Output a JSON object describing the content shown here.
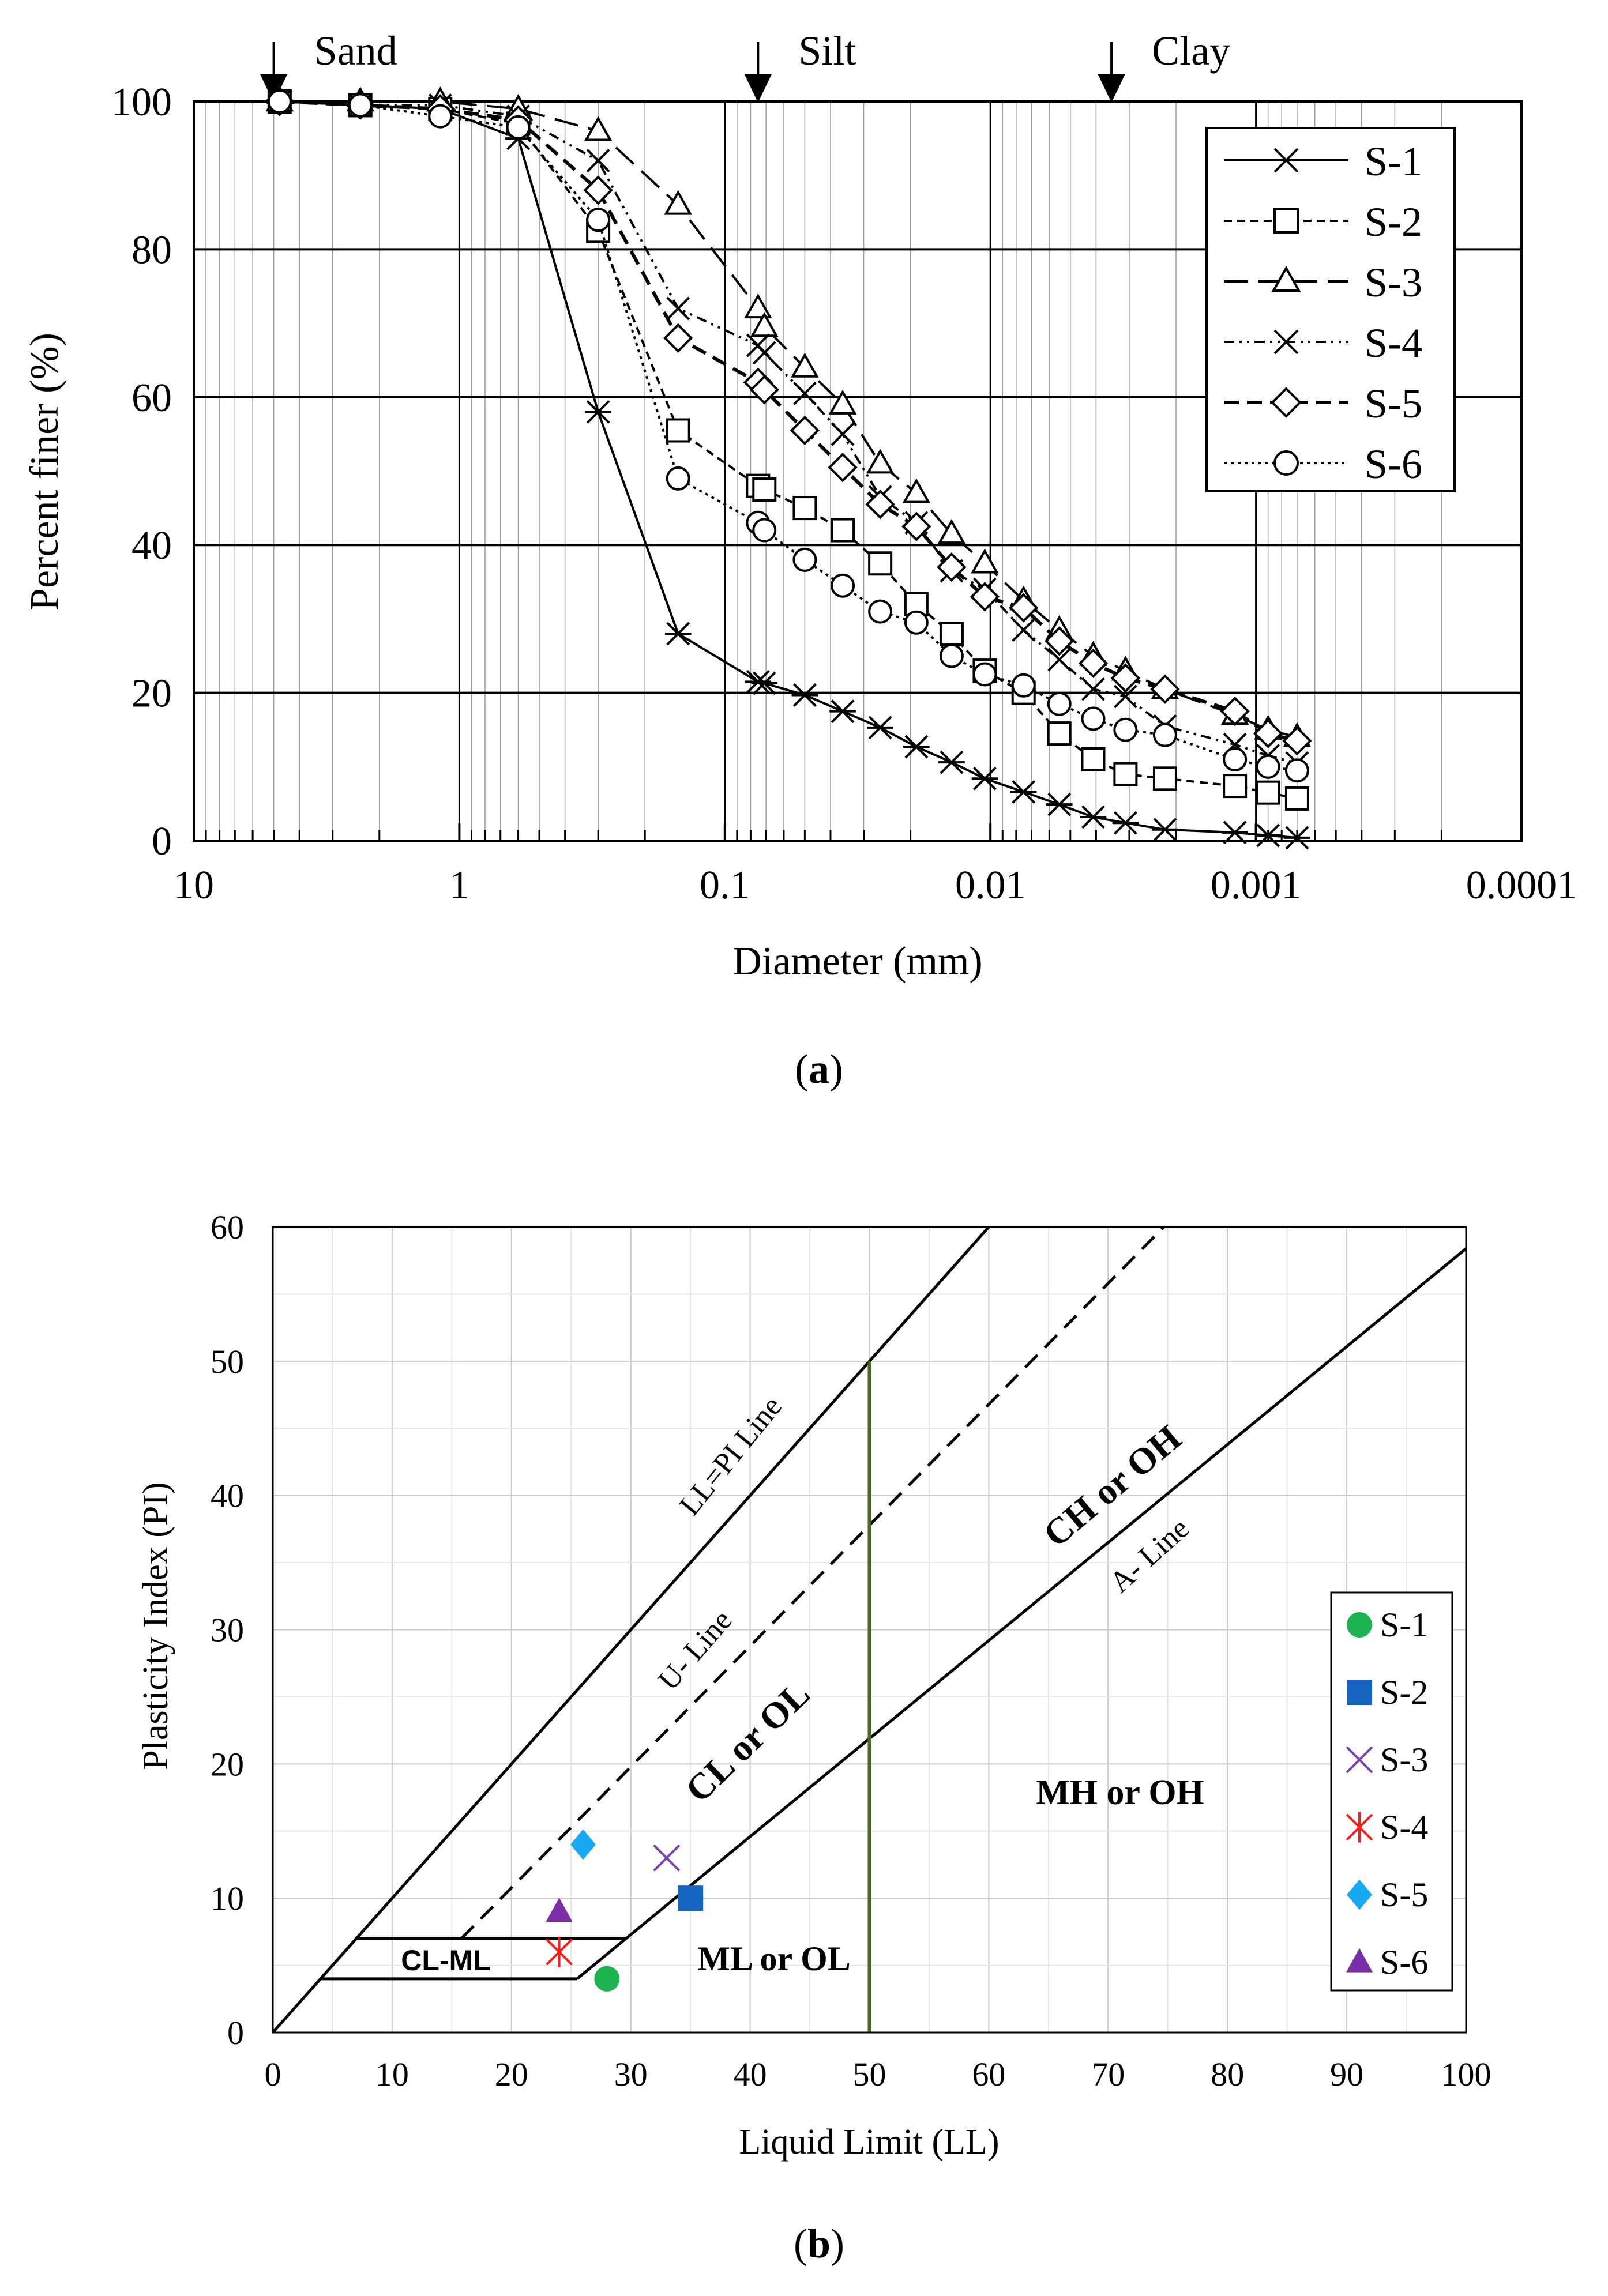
{
  "figure_a": {
    "caption": "(a)",
    "caption_letter": "a",
    "zones": [
      "Sand",
      "Silt",
      "Clay"
    ],
    "zone_markers_mm": [
      5,
      0.075,
      0.0035
    ]
  },
  "figure_b": {
    "caption": "(b)",
    "caption_letter": "b",
    "region_labels": [
      "CL-ML",
      "ML or OL",
      "CL or OL",
      "CH or OH",
      "MH or OH"
    ],
    "line_labels": [
      "LL=PI Line",
      "U- Line",
      "A- Line"
    ]
  },
  "chart_data": [
    {
      "type": "line",
      "title": "",
      "xlabel": "Diameter (mm)",
      "ylabel": "Percent finer (%)",
      "x_scale": "log",
      "x_reversed": true,
      "xlim": [
        10,
        0.0001
      ],
      "ylim": [
        0,
        100
      ],
      "x_ticks": [
        10,
        1,
        0.1,
        0.01,
        0.001,
        0.0001
      ],
      "x_tick_labels": [
        "10",
        "1",
        "0.1",
        "0.01",
        "0.001",
        "0.0001"
      ],
      "y_ticks": [
        0,
        20,
        40,
        60,
        80,
        100
      ],
      "y_tick_labels": [
        "0",
        "20",
        "40",
        "60",
        "80",
        "100"
      ],
      "grid": true,
      "legend_position": "top-right",
      "series": [
        {
          "name": "S-1",
          "marker": "asterisk",
          "line_style": "solid",
          "x": [
            4.75,
            2.36,
            1.18,
            0.6,
            0.3,
            0.15,
            0.075,
            0.071,
            0.05,
            0.036,
            0.026,
            0.019,
            0.014,
            0.0105,
            0.0075,
            0.0055,
            0.0041,
            0.0031,
            0.0022,
            0.0012,
            0.0009,
            0.0007
          ],
          "y": [
            100,
            99.5,
            99,
            95,
            58,
            28,
            21.5,
            21.3,
            19.7,
            17.5,
            15.3,
            12.7,
            10.6,
            8.4,
            6.6,
            4.9,
            3.2,
            2.4,
            1.5,
            1.1,
            0.7,
            0.4
          ]
        },
        {
          "name": "S-2",
          "marker": "square",
          "line_style": "dashed",
          "x": [
            4.75,
            2.36,
            1.18,
            0.6,
            0.3,
            0.15,
            0.075,
            0.071,
            0.05,
            0.036,
            0.026,
            0.019,
            0.014,
            0.0105,
            0.0075,
            0.0055,
            0.0041,
            0.0031,
            0.0022,
            0.0012,
            0.0009,
            0.0007
          ],
          "y": [
            100,
            99.5,
            99,
            97,
            82.5,
            55.5,
            48,
            47.5,
            45,
            42,
            37.5,
            32,
            28,
            23,
            20,
            14.5,
            11,
            9,
            8.4,
            7.4,
            6.5,
            5.7
          ]
        },
        {
          "name": "S-3",
          "marker": "triangle",
          "line_style": "long-dash",
          "x": [
            4.75,
            2.36,
            1.18,
            0.6,
            0.3,
            0.15,
            0.075,
            0.071,
            0.05,
            0.036,
            0.026,
            0.019,
            0.014,
            0.0105,
            0.0075,
            0.0055,
            0.0041,
            0.0031,
            0.0022,
            0.0012,
            0.0009,
            0.0007
          ],
          "y": [
            100,
            100,
            100,
            99,
            96,
            86,
            72,
            69.5,
            64,
            59,
            51,
            47,
            41.5,
            37.5,
            32.5,
            28.5,
            25,
            23,
            20.5,
            17,
            15,
            14
          ]
        },
        {
          "name": "S-4",
          "marker": "x",
          "line_style": "dash-dot-dot",
          "x": [
            4.75,
            2.36,
            1.18,
            0.6,
            0.3,
            0.15,
            0.075,
            0.071,
            0.05,
            0.036,
            0.026,
            0.019,
            0.014,
            0.0105,
            0.0075,
            0.0055,
            0.0041,
            0.0031,
            0.0022,
            0.0012,
            0.0009,
            0.0007
          ],
          "y": [
            100,
            99.5,
            99.5,
            98,
            92,
            72,
            67,
            66,
            60.5,
            55,
            46.5,
            43,
            36.5,
            34,
            28.5,
            24.5,
            20.5,
            19.5,
            15.5,
            13,
            11.5,
            10.5
          ]
        },
        {
          "name": "S-5",
          "marker": "diamond",
          "line_style": "bold-dashed",
          "x": [
            4.75,
            2.36,
            1.18,
            0.6,
            0.3,
            0.15,
            0.075,
            0.071,
            0.05,
            0.036,
            0.026,
            0.019,
            0.014,
            0.0105,
            0.0075,
            0.0055,
            0.0041,
            0.0031,
            0.0022,
            0.0012,
            0.0009,
            0.0007
          ],
          "y": [
            100,
            99.5,
            99,
            97.5,
            88,
            68,
            62,
            61,
            55.5,
            50.5,
            45.5,
            42.5,
            37,
            33,
            31.5,
            27,
            24,
            22,
            20.5,
            17.5,
            14.5,
            13.5
          ]
        },
        {
          "name": "S-6",
          "marker": "circle",
          "line_style": "dotted",
          "x": [
            4.75,
            2.36,
            1.18,
            0.6,
            0.3,
            0.15,
            0.075,
            0.071,
            0.05,
            0.036,
            0.026,
            0.019,
            0.014,
            0.0105,
            0.0075,
            0.0055,
            0.0041,
            0.0031,
            0.0022,
            0.0012,
            0.0009,
            0.0007
          ],
          "y": [
            100,
            99.5,
            98,
            96.5,
            84,
            49,
            43,
            42,
            38,
            34.5,
            31,
            29.5,
            25,
            22.5,
            21,
            18.5,
            16.5,
            15,
            14.3,
            11,
            10,
            9.5
          ]
        }
      ]
    },
    {
      "type": "scatter",
      "title": "",
      "xlabel": "Liquid Limit (LL)",
      "ylabel": "Plasticity Index (PI)",
      "xlim": [
        0,
        100
      ],
      "ylim": [
        0,
        60
      ],
      "x_ticks": [
        0,
        10,
        20,
        30,
        40,
        50,
        60,
        70,
        80,
        90,
        100
      ],
      "x_tick_labels": [
        "0",
        "10",
        "20",
        "30",
        "40",
        "50",
        "60",
        "70",
        "80",
        "90",
        "100"
      ],
      "y_ticks": [
        0,
        10,
        20,
        30,
        40,
        50,
        60
      ],
      "y_tick_labels": [
        "0",
        "10",
        "20",
        "30",
        "40",
        "50",
        "60"
      ],
      "grid": true,
      "legend_position": "right",
      "series": [
        {
          "name": "S-1",
          "marker": "circle",
          "color": "#1db350",
          "LL": 28,
          "PI": 4
        },
        {
          "name": "S-2",
          "marker": "square",
          "color": "#1565c0",
          "LL": 35,
          "PI": 10
        },
        {
          "name": "S-3",
          "marker": "x",
          "color": "#7b3fb0",
          "LL": 33,
          "PI": 13
        },
        {
          "name": "S-4",
          "marker": "asterisk",
          "color": "#ff1a1a",
          "LL": 24,
          "PI": 6
        },
        {
          "name": "S-5",
          "marker": "diamond",
          "color": "#17a9f2",
          "LL": 26,
          "PI": 14
        },
        {
          "name": "S-6",
          "marker": "triangle",
          "color": "#7a2fa8",
          "LL": 24,
          "PI": 9
        }
      ],
      "reference_lines": [
        {
          "name": "LL=PI Line",
          "equation": "PI = LL",
          "points": [
            [
              0,
              0
            ],
            [
              60,
              60
            ]
          ]
        },
        {
          "name": "U- Line",
          "equation": "PI = 0.9 (LL - 8)",
          "points": [
            [
              15.8,
              7
            ],
            [
              75,
              60.3
            ]
          ]
        },
        {
          "name": "A- Line",
          "equation": "PI = 0.73 (LL - 20)",
          "points": [
            [
              29.6,
              7
            ],
            [
              100,
              58.4
            ]
          ]
        },
        {
          "name": "LL = 50",
          "color": "#4a6b1e",
          "points": [
            [
              50,
              0
            ],
            [
              50,
              50
            ]
          ]
        }
      ]
    }
  ]
}
